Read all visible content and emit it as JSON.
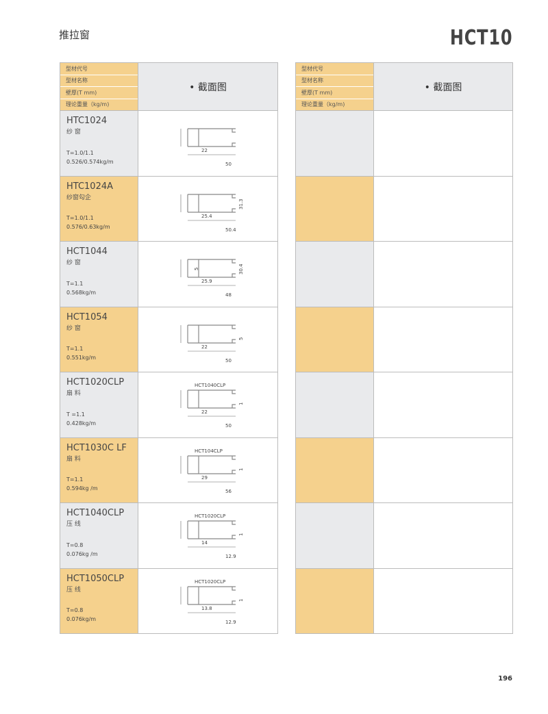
{
  "page": {
    "title": "推拉窗",
    "series_code": "HCT10",
    "page_number": "196"
  },
  "header": {
    "labels": [
      "型材代号",
      "型材名称",
      "壁厚(T mm)",
      "理论重量（kg/m)"
    ],
    "section": "• 截面图"
  },
  "colors": {
    "orange": "#f5d18d",
    "gray": "#e9eaec"
  },
  "left_rows": [
    {
      "code": "HTC1024",
      "name": "纱 窗",
      "t": "T=1.0/1.1",
      "w": "0.526/0.574kg/m",
      "dims": [
        "22",
        "50"
      ],
      "ref": ""
    },
    {
      "code": "HTC1024A",
      "name": "纱窗勾企",
      "t": "T=1.0/1.1",
      "w": "0.576/0.63kg/m",
      "dims": [
        "25.4",
        "50.4",
        "31.3"
      ],
      "ref": ""
    },
    {
      "code": "HCT1044",
      "name": "纱 窗",
      "t": "T=1.1",
      "w": "0.568kg/m",
      "dims": [
        "25.9",
        "48",
        "30.4",
        "5"
      ],
      "ref": ""
    },
    {
      "code": "HCT1054",
      "name": "纱 窗",
      "t": "T=1.1",
      "w": "0.551kg/m",
      "dims": [
        "22",
        "50",
        "5"
      ],
      "ref": ""
    },
    {
      "code": "HCT1020CLP",
      "name": "扇 料",
      "t": "T =1.1",
      "w": "0.428kg/m",
      "dims": [
        "22",
        "50",
        "1"
      ],
      "ref": "HCT1040CLP"
    },
    {
      "code": "HCT1030C LF",
      "name": "扇 料",
      "t": "T=1.1",
      "w": "0.594kg /m",
      "dims": [
        "29",
        "56",
        "1"
      ],
      "ref": "HCT104CLP"
    },
    {
      "code": "HCT1040CLP",
      "name": "压 线",
      "t": "T=0.8",
      "w": "0.076kg /m",
      "dims": [
        "14",
        "12.9",
        "1"
      ],
      "ref": "HCT1020CLP"
    },
    {
      "code": "HCT1050CLP",
      "name": "压 线",
      "t": "T=0.8",
      "w": "0.076kg/m",
      "dims": [
        "13.8",
        "12.9",
        "1"
      ],
      "ref": "HCT1020CLP"
    }
  ]
}
